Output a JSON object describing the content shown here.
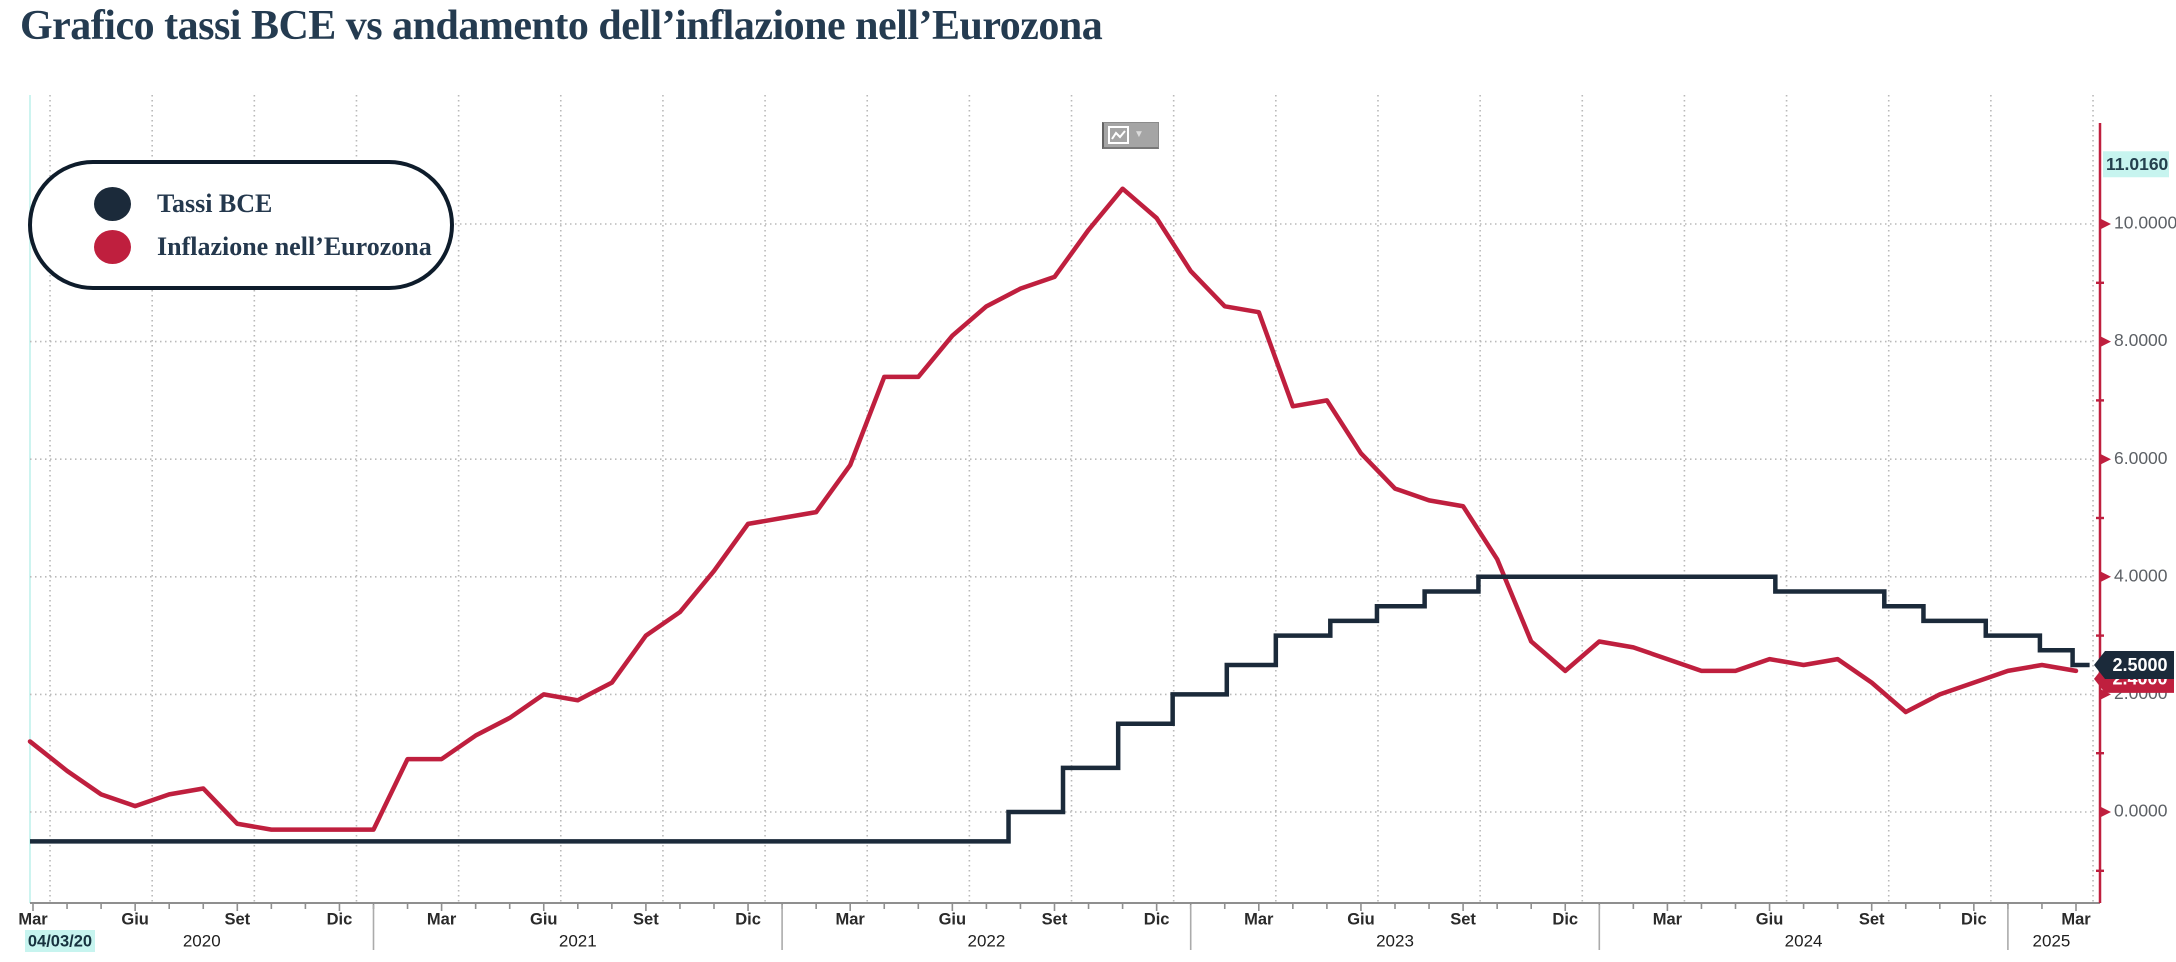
{
  "title": "Grafico tassi BCE vs andamento dell’inflazione nell’Eurozona",
  "legend": {
    "items": [
      {
        "label": "Tassi BCE",
        "color": "#1b2a3a"
      },
      {
        "label": "Inflazione nell’Eurozona",
        "color": "#bf1f3e"
      }
    ]
  },
  "toolbar": {
    "chart_type_button_icon": "line-chart-icon",
    "dropdown_caret": "▼"
  },
  "axes": {
    "y_right": {
      "axis_color": "#bf1f3e",
      "tick_values": [
        10,
        8,
        6,
        4,
        2,
        0
      ],
      "tick_labels": [
        "10.0000",
        "8.0000",
        "6.0000",
        "4.0000",
        "2.0000",
        "0.0000"
      ],
      "minor_tick_values": [
        9,
        7,
        5,
        3,
        1,
        -1
      ],
      "max_label": {
        "text": "11.0160",
        "value": 11.016,
        "highlight_color": "#c7f4ef"
      },
      "last_value_badges": [
        {
          "text": "2.5000",
          "value": 2.5,
          "color": "#1b2a3a",
          "series": "Tassi BCE"
        },
        {
          "text": "2.4000",
          "value": 2.4,
          "color": "#bf1f3e",
          "series": "Inflazione nell’Eurozona"
        }
      ]
    },
    "x_bottom": {
      "month_labels": [
        "Mar",
        "Giu",
        "Set",
        "Dic",
        "Mar",
        "Giu",
        "Set",
        "Dic",
        "Mar",
        "Giu",
        "Set",
        "Dic",
        "Mar",
        "Giu",
        "Set",
        "Dic",
        "Mar",
        "Giu",
        "Set",
        "Dic",
        "Mar"
      ],
      "year_labels": [
        "2020",
        "2021",
        "2022",
        "2023",
        "2024",
        "2025"
      ],
      "start_date_label": {
        "text": "04/03/20",
        "highlight_color": "#c7f4ef"
      }
    }
  },
  "chart_data": {
    "type": "line",
    "title": "Grafico tassi BCE vs andamento dell’inflazione nell’Eurozona",
    "x_range": [
      "2020-03-04",
      "2025-03"
    ],
    "ylim": [
      -1.5,
      12.2
    ],
    "grid": true,
    "legend_position": "top-left",
    "y_ticks_labeled": [
      0,
      2,
      4,
      6,
      8,
      10
    ],
    "series": [
      {
        "name": "Tassi BCE",
        "type": "step",
        "color": "#1b2a3a",
        "points_months_from_mar2020": [
          [
            0,
            -0.5
          ],
          [
            28.65,
            0.0
          ],
          [
            30.25,
            0.75
          ],
          [
            31.87,
            1.5
          ],
          [
            33.47,
            2.0
          ],
          [
            35.06,
            2.5
          ],
          [
            36.5,
            3.0
          ],
          [
            38.1,
            3.25
          ],
          [
            39.47,
            3.5
          ],
          [
            40.87,
            3.75
          ],
          [
            42.45,
            4.0
          ],
          [
            51.17,
            3.75
          ],
          [
            54.37,
            3.5
          ],
          [
            55.52,
            3.25
          ],
          [
            57.35,
            3.0
          ],
          [
            58.94,
            2.75
          ],
          [
            59.9,
            2.5
          ],
          [
            60.4,
            2.5
          ]
        ],
        "last_value": 2.5
      },
      {
        "name": "Inflazione nell’Eurozona",
        "type": "line",
        "color": "#bf1f3e",
        "first_month": "2020-02",
        "values": [
          1.2,
          0.7,
          0.3,
          0.1,
          0.3,
          0.4,
          -0.2,
          -0.3,
          -0.3,
          -0.3,
          -0.3,
          0.9,
          0.9,
          1.3,
          1.6,
          2.0,
          1.9,
          2.2,
          3.0,
          3.4,
          4.1,
          4.9,
          5.0,
          5.1,
          5.9,
          7.4,
          7.4,
          8.1,
          8.6,
          8.9,
          9.1,
          9.9,
          10.6,
          10.1,
          9.2,
          8.6,
          8.5,
          6.9,
          7.0,
          6.1,
          5.5,
          5.3,
          5.2,
          4.3,
          2.9,
          2.4,
          2.9,
          2.8,
          2.6,
          2.4,
          2.4,
          2.6,
          2.5,
          2.6,
          2.2,
          1.7,
          2.0,
          2.2,
          2.4,
          2.5,
          2.4
        ],
        "last_value": 2.4
      }
    ]
  }
}
